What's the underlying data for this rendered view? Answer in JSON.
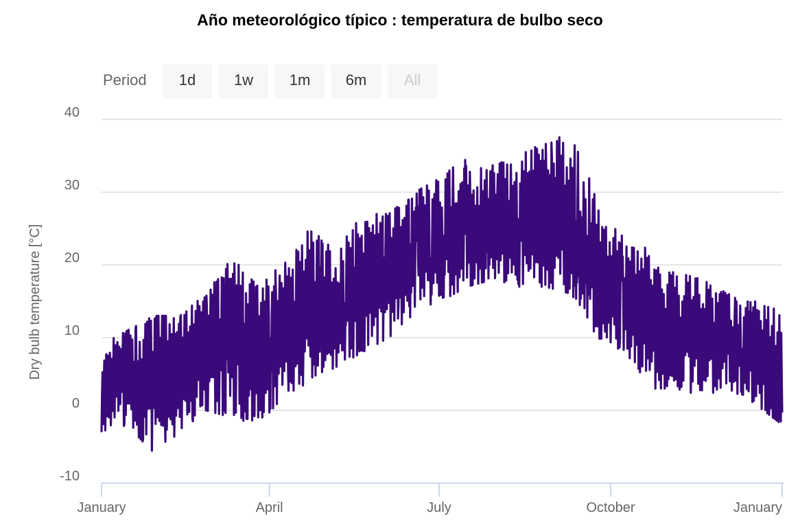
{
  "chart_data": {
    "type": "line",
    "title": "Año meteorológico típico : temperatura de bulbo seco",
    "xlabel": "",
    "ylabel": "Dry bulb temperature [°C]",
    "ylim": [
      -10,
      40
    ],
    "yticks": [
      "-10",
      "0",
      "10",
      "20",
      "30",
      "40"
    ],
    "xticks": [
      {
        "label": "January",
        "day": 0
      },
      {
        "label": "April",
        "day": 90
      },
      {
        "label": "July",
        "day": 181
      },
      {
        "label": "October",
        "day": 273
      },
      {
        "label": "January",
        "day": 365
      }
    ],
    "grid": true,
    "legend": "none",
    "series": [
      {
        "name": "Dry bulb temperature",
        "color": "#3b0a7a",
        "note": "biweekly envelope of hourly values",
        "day": [
          0,
          14,
          28,
          42,
          56,
          70,
          84,
          98,
          112,
          126,
          140,
          154,
          168,
          182,
          196,
          210,
          224,
          238,
          252,
          266,
          280,
          294,
          308,
          322,
          336,
          350,
          365
        ],
        "max": [
          9,
          11,
          13,
          13,
          16,
          21,
          17,
          21,
          25,
          22,
          27,
          27,
          30,
          32,
          35,
          34,
          35,
          37,
          38,
          29,
          24,
          22,
          19,
          18,
          16,
          15,
          14
        ],
        "min": [
          -3,
          -2,
          -6,
          -3,
          0,
          -1,
          -2,
          2,
          4,
          6,
          8,
          10,
          13,
          15,
          17,
          18,
          17,
          17,
          16,
          10,
          8,
          3,
          3,
          2,
          3,
          1,
          -2
        ]
      }
    ]
  },
  "range_selector": {
    "label": "Period",
    "buttons": [
      "1d",
      "1w",
      "1m",
      "6m",
      "All"
    ]
  }
}
